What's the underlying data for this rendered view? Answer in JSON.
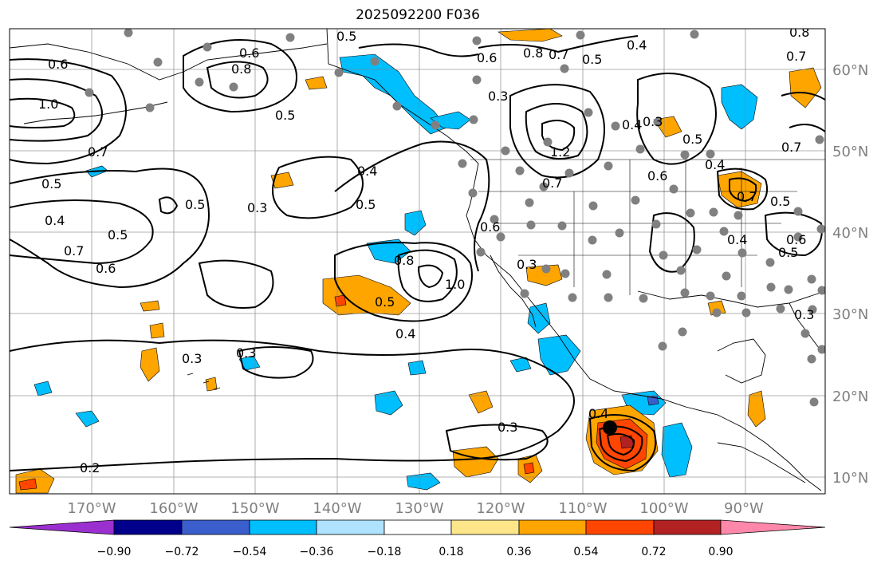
{
  "title": "2025092200 F036",
  "lon_labels": [
    "170°W",
    "160°W",
    "150°W",
    "140°W",
    "130°W",
    "120°W",
    "110°W",
    "100°W",
    "90°W"
  ],
  "lat_labels": [
    "60°N",
    "50°N",
    "40°N",
    "30°N",
    "20°N",
    "10°N"
  ],
  "colorbar": {
    "tick_labels": [
      "−0.90",
      "−0.72",
      "−0.54",
      "−0.36",
      "−0.18",
      "0.18",
      "0.36",
      "0.54",
      "0.72",
      "0.90"
    ],
    "colors": [
      "#9b30d0",
      "#00008b",
      "#3a5fcd",
      "#00bfff",
      "#aee2ff",
      "#ffffff",
      "#fde68a",
      "#ffa500",
      "#ff4500",
      "#b22222",
      "#ff88aa"
    ]
  },
  "contour_labels": [
    "0.6",
    "1.0",
    "0.7",
    "0.5",
    "0.4",
    "0.7",
    "0.6",
    "0.5",
    "0.5",
    "0.3",
    "0.6",
    "0.8",
    "0.5",
    "0.5",
    "0.4",
    "0.5",
    "0.8",
    "1.0",
    "0.5",
    "0.4",
    "0.3",
    "0.3",
    "0.2",
    "0.3",
    "0.4",
    "0.3",
    "0.6",
    "1.2",
    "0.7",
    "0.6",
    "0.3",
    "0.8",
    "0.7",
    "0.5",
    "0.4",
    "0.3",
    "0.4",
    "0.6",
    "0.5",
    "0.4",
    "0.7",
    "0.5",
    "0.4",
    "0.6",
    "0.5",
    "0.7",
    "0.7",
    "0.3",
    "0.8"
  ],
  "colors": {
    "contour": "#000000",
    "grid": "#808080",
    "station_dot": "#808080",
    "coast": "#000000"
  }
}
